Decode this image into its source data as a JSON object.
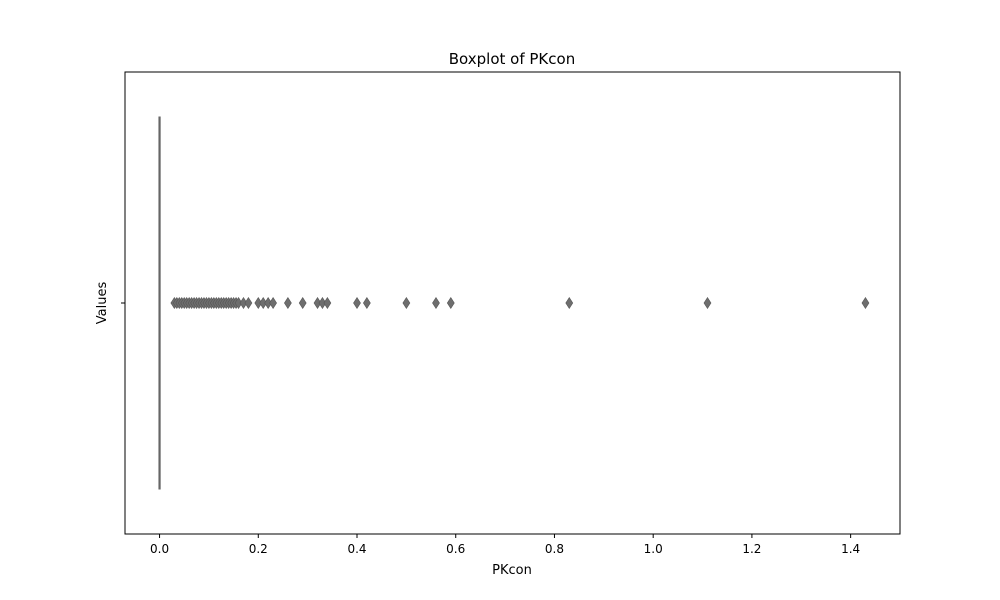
{
  "chart_data": {
    "type": "boxplot",
    "title": "Boxplot of PKcon",
    "xlabel": "PKcon",
    "ylabel": "Values",
    "xlim": [
      -0.07,
      1.5
    ],
    "x_ticks": [
      0.0,
      0.2,
      0.4,
      0.6,
      0.8,
      1.0,
      1.2,
      1.4
    ],
    "x_tick_labels": [
      "0.0",
      "0.2",
      "0.4",
      "0.6",
      "0.8",
      "1.0",
      "1.2",
      "1.4"
    ],
    "y_tick_labels": [
      ""
    ],
    "box": {
      "q1": 0.0,
      "median": 0.0,
      "q3": 0.0,
      "whisker_low": 0.0,
      "whisker_high": 0.0
    },
    "outliers": [
      0.03,
      0.035,
      0.04,
      0.045,
      0.05,
      0.055,
      0.06,
      0.065,
      0.07,
      0.075,
      0.08,
      0.085,
      0.09,
      0.095,
      0.1,
      0.105,
      0.11,
      0.115,
      0.12,
      0.125,
      0.13,
      0.135,
      0.14,
      0.145,
      0.15,
      0.155,
      0.16,
      0.17,
      0.18,
      0.2,
      0.21,
      0.22,
      0.23,
      0.26,
      0.29,
      0.32,
      0.33,
      0.34,
      0.4,
      0.42,
      0.5,
      0.56,
      0.59,
      0.83,
      1.11,
      1.43
    ],
    "colors": {
      "box": "#666666",
      "outlier": "#6e6e6e",
      "frame": "#000000"
    },
    "grid": false
  }
}
